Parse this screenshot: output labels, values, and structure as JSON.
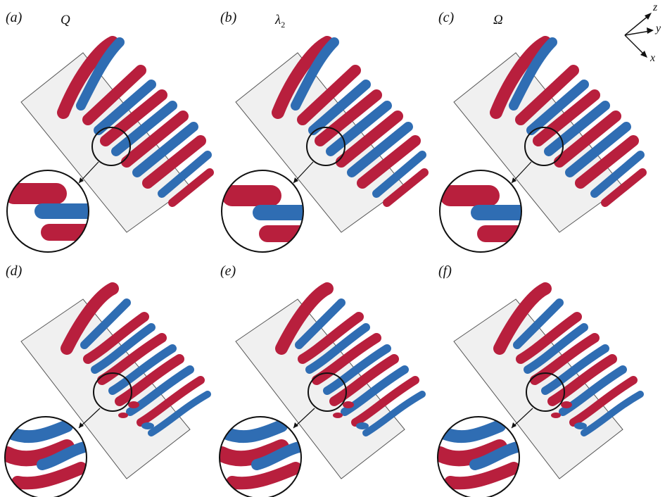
{
  "panels": [
    {
      "label": "(a)",
      "criterion": "Q",
      "sub": ""
    },
    {
      "label": "(b)",
      "criterion": "λ",
      "sub": "2"
    },
    {
      "label": "(c)",
      "criterion": "Ω",
      "sub": ""
    },
    {
      "label": "(d)",
      "criterion": "",
      "sub": ""
    },
    {
      "label": "(e)",
      "criterion": "",
      "sub": ""
    },
    {
      "label": "(f)",
      "criterion": "",
      "sub": ""
    }
  ],
  "axes": {
    "z": "z",
    "y": "y",
    "x": "x"
  },
  "colors": {
    "red": "#b81f3d",
    "blue": "#2f6db3",
    "plate": "#f0f0f0",
    "plate_edge": "#555555"
  }
}
